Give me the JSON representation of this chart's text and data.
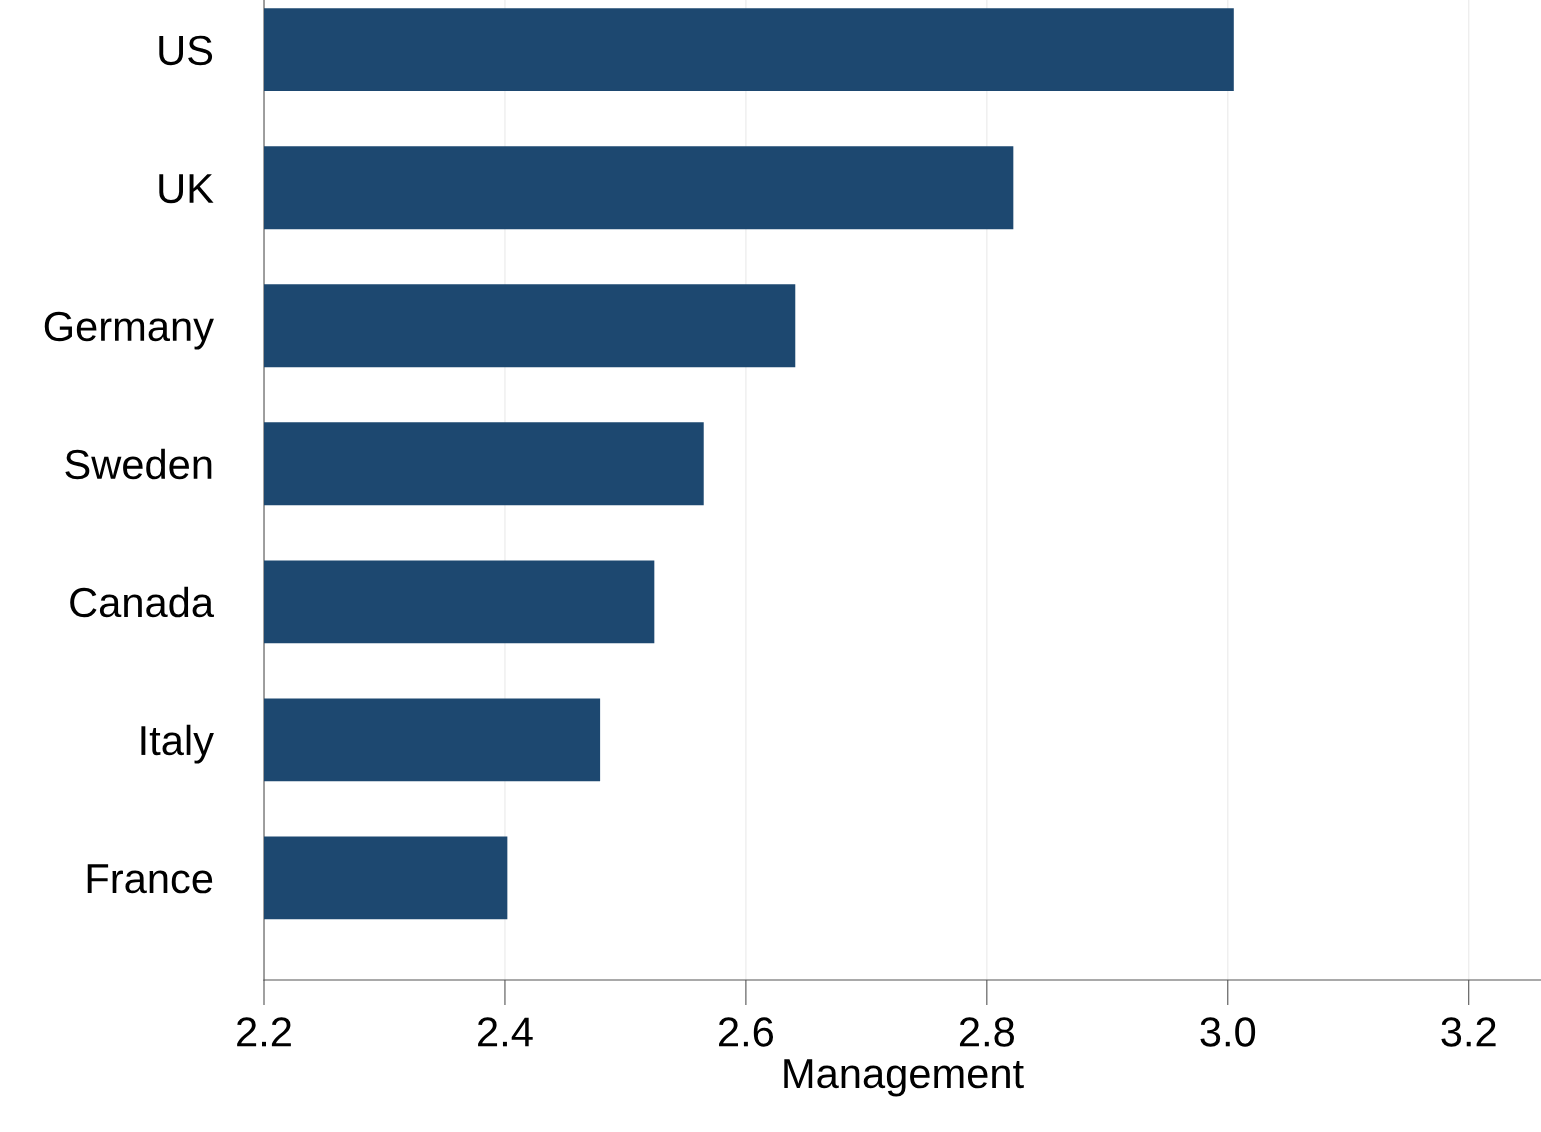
{
  "chart_data": {
    "type": "bar",
    "orientation": "horizontal",
    "xlabel": "Management",
    "categories": [
      "US",
      "UK",
      "Germany",
      "Sweden",
      "Canada",
      "Italy",
      "France"
    ],
    "values": [
      3.005,
      2.822,
      2.641,
      2.565,
      2.524,
      2.479,
      2.402
    ],
    "color": "#1d4870",
    "xlim": [
      2.2,
      3.26
    ],
    "xticks": [
      2.2,
      2.4,
      2.6,
      2.8,
      {
        "value": 3.0,
        "label": "3.0"
      },
      3.2
    ],
    "grid": "x",
    "legend": false
  }
}
